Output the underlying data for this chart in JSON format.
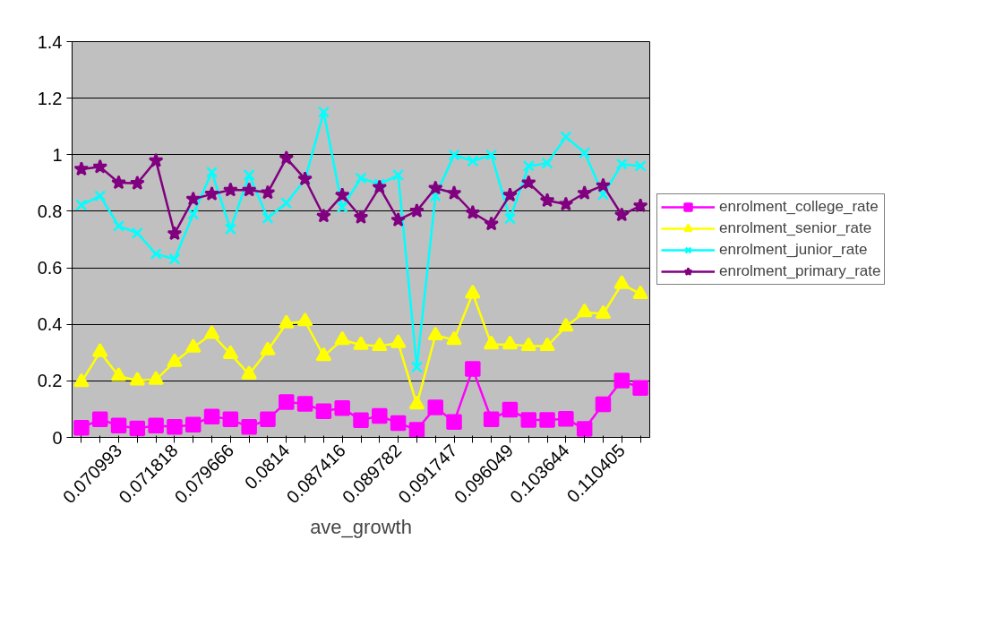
{
  "chart_data": {
    "type": "line",
    "xlabel": "ave_growth",
    "categories": [
      null,
      null,
      "0.070993",
      null,
      null,
      "0.071818",
      null,
      null,
      "0.079666",
      null,
      null,
      "0.0814",
      null,
      null,
      "0.087416",
      null,
      null,
      "0.089782",
      null,
      null,
      "0.091747",
      null,
      null,
      "0.096049",
      null,
      null,
      "0.103644",
      null,
      null,
      "0.110405",
      null
    ],
    "series": [
      {
        "name": "enrolment_college_rate",
        "color": "#ff00ff",
        "marker": "square",
        "values": [
          0.034,
          0.064,
          0.042,
          0.032,
          0.042,
          0.037,
          0.045,
          0.074,
          0.064,
          0.037,
          0.064,
          0.125,
          0.119,
          0.093,
          0.104,
          0.061,
          0.076,
          0.051,
          0.027,
          0.106,
          0.055,
          0.242,
          0.064,
          0.098,
          0.062,
          0.062,
          0.066,
          0.03,
          0.117,
          0.201,
          0.175
        ]
      },
      {
        "name": "enrolment_senior_rate",
        "color": "#ffff00",
        "marker": "triangle",
        "values": [
          0.196,
          0.302,
          0.217,
          0.201,
          0.204,
          0.267,
          0.318,
          0.366,
          0.295,
          0.223,
          0.308,
          0.403,
          0.411,
          0.288,
          0.345,
          0.327,
          0.323,
          0.334,
          0.117,
          0.361,
          0.345,
          0.509,
          0.329,
          0.329,
          0.323,
          0.323,
          0.392,
          0.443,
          0.437,
          0.543,
          0.507
        ]
      },
      {
        "name": "enrolment_junior_rate",
        "color": "#00ffff",
        "marker": "cross",
        "values": [
          0.822,
          0.854,
          0.748,
          0.723,
          0.649,
          0.631,
          0.79,
          0.938,
          0.737,
          0.928,
          0.776,
          0.829,
          0.912,
          1.151,
          0.814,
          0.917,
          0.896,
          0.928,
          0.249,
          0.854,
          0.999,
          0.978,
          0.999,
          0.774,
          0.96,
          0.97,
          1.063,
          1.007,
          0.859,
          0.967,
          0.96
        ]
      },
      {
        "name": "enrolment_primary_rate",
        "color": "#800080",
        "marker": "star",
        "values": [
          0.949,
          0.957,
          0.901,
          0.899,
          0.979,
          0.721,
          0.843,
          0.861,
          0.875,
          0.875,
          0.866,
          0.988,
          0.914,
          0.783,
          0.857,
          0.779,
          0.885,
          0.769,
          0.801,
          0.882,
          0.864,
          0.795,
          0.755,
          0.857,
          0.901,
          0.838,
          0.825,
          0.864,
          0.891,
          0.787,
          0.819
        ]
      }
    ],
    "ylim": [
      0,
      1.4
    ],
    "yticks": [
      0,
      0.2,
      0.4,
      0.6,
      0.8,
      1,
      1.2,
      1.4
    ],
    "grid": "y",
    "legend": "right",
    "line_style": "solid"
  }
}
